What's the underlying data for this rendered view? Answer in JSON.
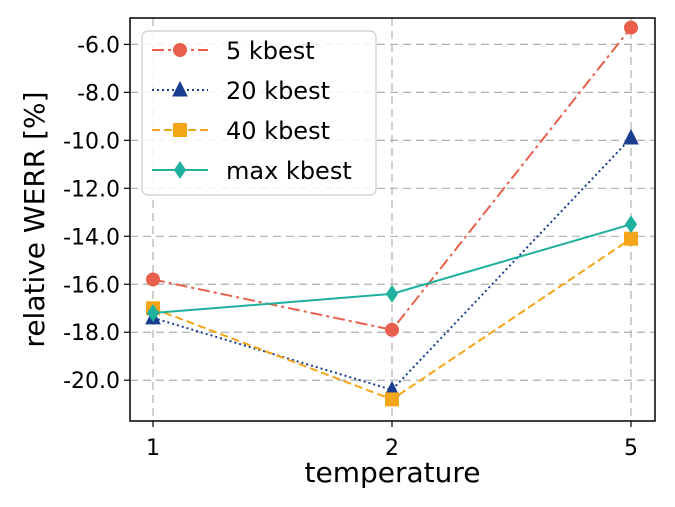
{
  "chart_data": {
    "type": "line",
    "xlabel": "temperature",
    "ylabel": "relative WERR [%]",
    "categories": [
      "1",
      "2",
      "5"
    ],
    "ylim": [
      -21.7,
      -4.9
    ],
    "yticks": [
      "-6.0",
      "-8.0",
      "-10.0",
      "-12.0",
      "-14.0",
      "-16.0",
      "-18.0",
      "-20.0"
    ],
    "ytick_values": [
      -6,
      -8,
      -10,
      -12,
      -14,
      -16,
      -18,
      -20
    ],
    "grid": true,
    "legend_position": "top-left",
    "series": [
      {
        "name": "5 kbest",
        "values": [
          -15.8,
          -17.9,
          -5.3
        ],
        "color": "#e8604c",
        "marker": "circle",
        "line_style": "dash-dot"
      },
      {
        "name": "20 kbest",
        "values": [
          -17.4,
          -20.4,
          -9.9
        ],
        "color": "#1a3d8f",
        "marker": "triangle",
        "line_style": "dotted"
      },
      {
        "name": "40 kbest",
        "values": [
          -17.0,
          -20.8,
          -14.1
        ],
        "color": "#f5a518",
        "marker": "square",
        "line_style": "dashed"
      },
      {
        "name": "max kbest",
        "values": [
          -17.2,
          -16.4,
          -13.5
        ],
        "color": "#1fb09e",
        "marker": "diamond",
        "line_style": "solid"
      }
    ]
  }
}
